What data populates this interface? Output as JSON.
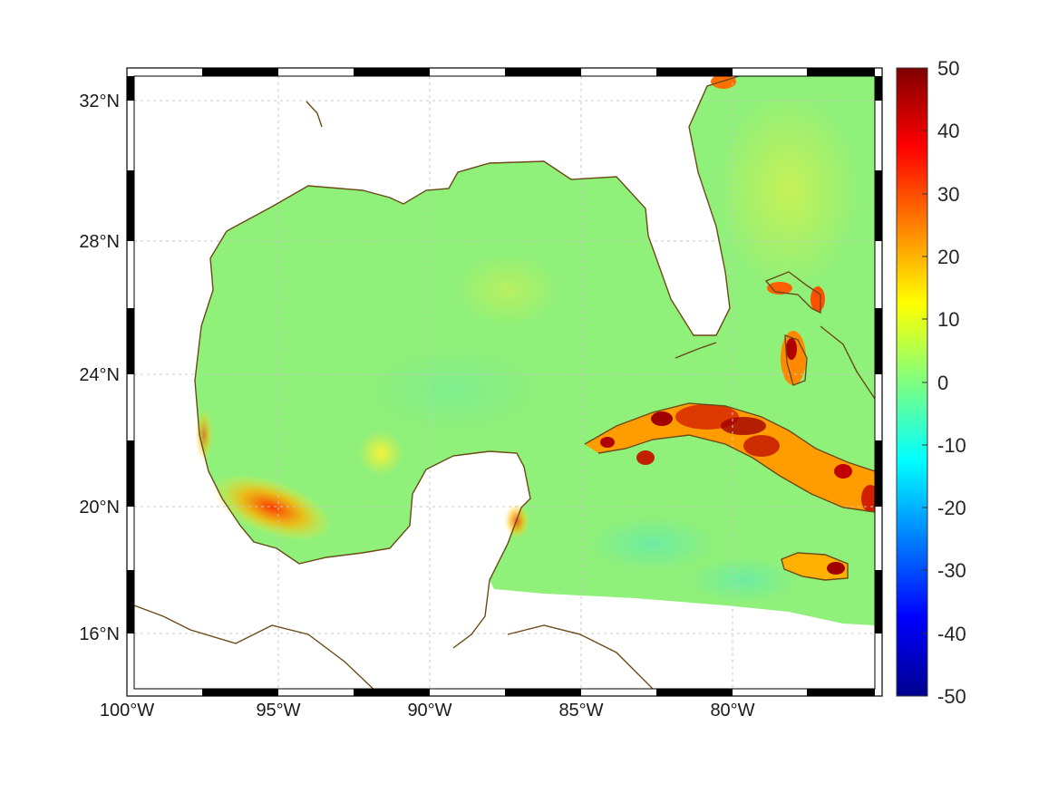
{
  "map": {
    "projection": "mercator-like",
    "lon_range": [
      -100,
      -75
    ],
    "lat_range": [
      14.2,
      33
    ],
    "lon_labels": [
      "100°W",
      "95°W",
      "90°W",
      "85°W",
      "80°W"
    ],
    "lat_labels": [
      "32°N",
      "28°N",
      "24°N",
      "20°N",
      "16°N"
    ],
    "grid": true,
    "coastline_color": "#6b4a17",
    "frame_style": "alternating black/white border"
  },
  "colorbar": {
    "colormap": "jet",
    "range": [
      -50,
      50
    ],
    "ticks": [
      "50",
      "40",
      "30",
      "20",
      "10",
      "0",
      "-10",
      "-20",
      "-30",
      "-40",
      "-50"
    ]
  },
  "field": {
    "description_hidden": "",
    "background_color": "#7df27a",
    "hotspot_colors": [
      "#e8f43a",
      "#ffb400",
      "#ff5a00",
      "#c40000",
      "#7a0000"
    ]
  }
}
